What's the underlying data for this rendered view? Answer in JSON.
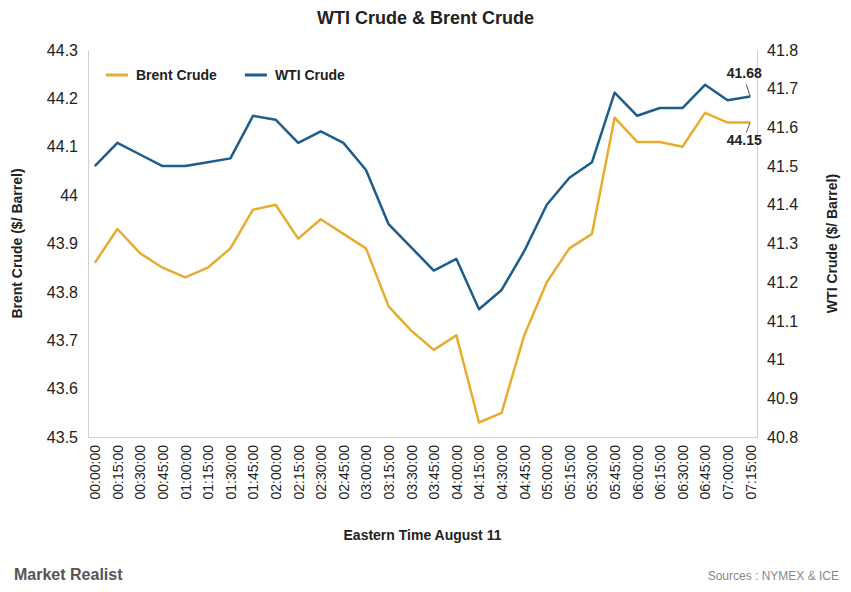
{
  "chart_data": {
    "type": "line",
    "title": "WTI Crude & Brent Crude",
    "x_label": "Eastern Time August 11",
    "y_label": "Brent Crude ($/ Barrel)",
    "y2_label": "WTI Crude ($/ Barrel)",
    "source": "Sources : NYMEX & ICE",
    "logo": "Market Realist",
    "legend": "upper left",
    "grid": false,
    "categories": [
      "00:00:00",
      "00:15:00",
      "00:30:00",
      "00:45:00",
      "01:00:00",
      "01:15:00",
      "01:30:00",
      "01:45:00",
      "02:00:00",
      "02:15:00",
      "02:30:00",
      "02:45:00",
      "03:00:00",
      "03:15:00",
      "03:30:00",
      "03:45:00",
      "04:00:00",
      "04:15:00",
      "04:30:00",
      "04:45:00",
      "05:00:00",
      "05:15:00",
      "05:30:00",
      "05:45:00",
      "06:00:00",
      "06:15:00",
      "06:30:00",
      "06:45:00",
      "07:00:00",
      "07:15:00"
    ],
    "ylim": [
      43.5,
      44.3
    ],
    "yticks": [
      43.5,
      43.6,
      43.7,
      43.8,
      43.9,
      44,
      44.1,
      44.2,
      44.3
    ],
    "y2lim": [
      40.8,
      41.8
    ],
    "y2ticks": [
      40.8,
      40.9,
      41,
      41.1,
      41.2,
      41.3,
      41.4,
      41.5,
      41.6,
      41.7,
      41.8
    ],
    "series": [
      {
        "name": "Brent Crude",
        "color": "#e6ad2e",
        "values": [
          43.86,
          43.93,
          43.88,
          43.85,
          43.83,
          43.85,
          43.89,
          43.97,
          43.98,
          43.91,
          43.95,
          43.92,
          43.89,
          43.77,
          43.72,
          43.68,
          43.71,
          43.53,
          43.55,
          43.71,
          43.82,
          43.89,
          43.92,
          44.16,
          44.11,
          44.11,
          44.1,
          44.17,
          44.15,
          44.15
        ],
        "value_labels": [
          null,
          null,
          null,
          null,
          null,
          null,
          null,
          null,
          null,
          null,
          null,
          null,
          null,
          null,
          null,
          null,
          null,
          null,
          null,
          null,
          null,
          null,
          null,
          null,
          null,
          null,
          null,
          null,
          null,
          "44.15"
        ]
      },
      {
        "name": "WTI Crude",
        "color": "#1d5d8a",
        "axis": "y2",
        "values": [
          41.5,
          41.56,
          41.53,
          41.5,
          41.5,
          41.51,
          41.52,
          41.63,
          41.62,
          41.56,
          41.59,
          41.56,
          41.49,
          41.35,
          41.29,
          41.23,
          41.26,
          41.13,
          41.18,
          41.28,
          41.4,
          41.47,
          41.51,
          41.69,
          41.63,
          41.65,
          41.65,
          41.71,
          41.67,
          41.68
        ],
        "value_labels": [
          null,
          null,
          null,
          null,
          null,
          null,
          null,
          null,
          null,
          null,
          null,
          null,
          null,
          null,
          null,
          null,
          null,
          null,
          null,
          null,
          null,
          null,
          null,
          null,
          null,
          null,
          null,
          null,
          null,
          "41.68"
        ]
      }
    ]
  }
}
